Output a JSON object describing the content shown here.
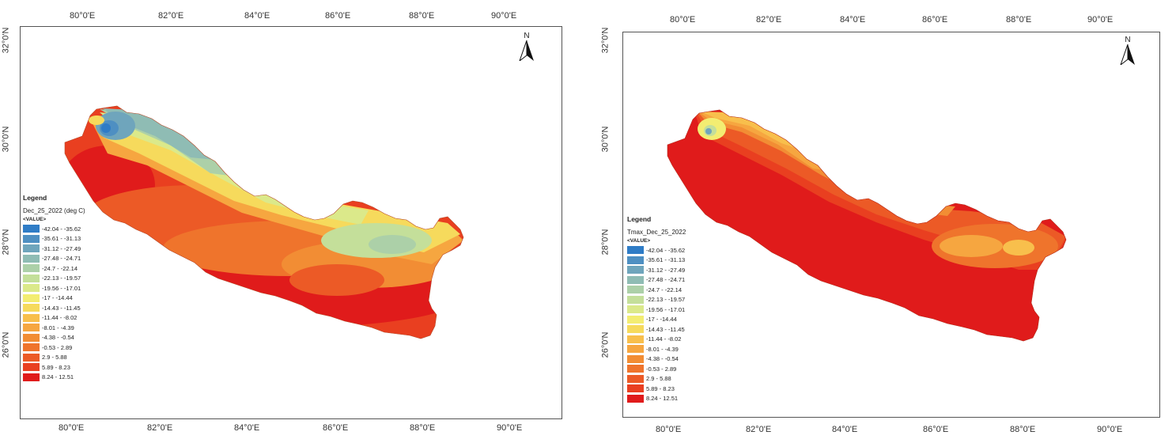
{
  "palette": {
    "dark_red": "#e01b1b",
    "red": "#e8321c",
    "red_orange": "#ec5a26",
    "orange": "#f07a2c",
    "light_orange": "#f59d3a",
    "yellow_orange": "#f8bf4c",
    "yellow": "#f5e565",
    "pale_yellow": "#e4ec7e",
    "pale_green": "#cfe69a",
    "green_grey": "#acd0a8",
    "teal_grey": "#8fbcb4",
    "blue_grey": "#6fa5bc",
    "steel_blue": "#4e8fc2",
    "blue": "#2f7cc6"
  },
  "legend_classes": [
    {
      "label": "-42.04 - -35.62",
      "color": "#2f7cc6"
    },
    {
      "label": "-35.61 - -31.13",
      "color": "#4e8fc2"
    },
    {
      "label": "-31.12 - -27.49",
      "color": "#6fa5bc"
    },
    {
      "label": "-27.48 - -24.71",
      "color": "#8fbcb4"
    },
    {
      "label": "-24.7 - -22.14",
      "color": "#acd0a8"
    },
    {
      "label": "-22.13 - -19.57",
      "color": "#c4df9a"
    },
    {
      "label": "-19.56 - -17.01",
      "color": "#dbe98a"
    },
    {
      "label": "-17 - -14.44",
      "color": "#f3ed72"
    },
    {
      "label": "-14.43 - -11.45",
      "color": "#f6da5c"
    },
    {
      "label": "-11.44 - -8.02",
      "color": "#f8bf4c"
    },
    {
      "label": "-8.01 - -4.39",
      "color": "#f6a640"
    },
    {
      "label": "-4.38 - -0.54",
      "color": "#f28d34"
    },
    {
      "label": "-0.53 - 2.89",
      "color": "#ef742c"
    },
    {
      "label": "2.9 - 5.88",
      "color": "#ec5a26"
    },
    {
      "label": "5.89 - 8.23",
      "color": "#e93f20"
    },
    {
      "label": "8.24 - 12.51",
      "color": "#e01b1b"
    }
  ],
  "maps": {
    "left": {
      "lon_ticks": [
        "80°0'E",
        "82°0'E",
        "84°0'E",
        "86°0'E",
        "88°0'E",
        "90°0'E"
      ],
      "lat_ticks": [
        "32°0'N",
        "30°0'N",
        "28°0'N",
        "26°0'N"
      ],
      "legend_title": "Legend",
      "layer_name": "Dec_25_2022 (deg C)",
      "value_label": "<VALUE>",
      "north_label": "N"
    },
    "right": {
      "lon_ticks": [
        "80°0'E",
        "82°0'E",
        "84°0'E",
        "86°0'E",
        "88°0'E",
        "90°0'E"
      ],
      "lat_ticks": [
        "32°0'N",
        "30°0'N",
        "28°0'N",
        "26°0'N"
      ],
      "legend_title": "Legend",
      "layer_name": "Tmax_Dec_25_2022",
      "value_label": "<VALUE>",
      "north_label": "N"
    }
  }
}
